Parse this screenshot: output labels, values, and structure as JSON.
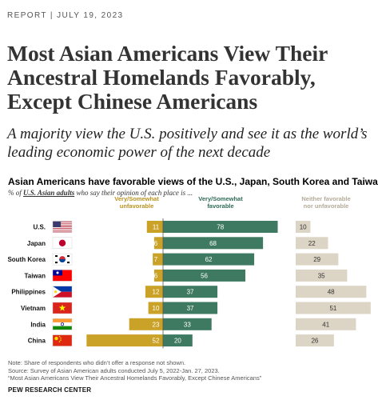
{
  "header": {
    "kicker": "REPORT  |  JULY 19, 2023",
    "headline": "Most Asian Americans View Their Ancestral Homelands Favorably, Except Chinese Americans",
    "subhead": "A majority view the U.S. positively and see it as the world’s leading economic power of the next decade"
  },
  "colors": {
    "unfavorable": "#c9a227",
    "favorable": "#3e7a62",
    "neither": "#dcd4c4",
    "unfav_label": "#b8921f",
    "fav_label": "#2f6b55",
    "neither_label": "#b3aa98"
  },
  "chart_data": {
    "type": "bar",
    "title": "Asian Americans have favorable views of the U.S., Japan, South Korea and Taiwan",
    "subtitle_pre": "% of ",
    "subtitle_underlined": "U.S. Asian adults",
    "subtitle_post": " who say their opinion of each place is ...",
    "categories": [
      "U.S.",
      "Japan",
      "South Korea",
      "Taiwan",
      "Philippines",
      "Vietnam",
      "India",
      "China"
    ],
    "flags": [
      "us-flag",
      "japan-flag",
      "south-korea-flag",
      "taiwan-flag",
      "philippines-flag",
      "vietnam-flag",
      "india-flag",
      "china-flag"
    ],
    "series": [
      {
        "name": "Very/Somewhat unfavorable",
        "label_lines": [
          "Very/Somewhat",
          "unfavorable"
        ],
        "values": [
          11,
          6,
          7,
          6,
          12,
          10,
          23,
          52
        ]
      },
      {
        "name": "Very/Somewhat favorable",
        "label_lines": [
          "Very/Somewhat",
          "favorable"
        ],
        "values": [
          78,
          68,
          62,
          56,
          37,
          37,
          33,
          20
        ]
      },
      {
        "name": "Neither favorable nor unfavorable",
        "label_lines": [
          "Neither favorable",
          "nor unfavorable"
        ],
        "values": [
          10,
          22,
          29,
          35,
          48,
          51,
          41,
          26
        ]
      }
    ]
  },
  "footer": {
    "note": "Note: Share of respondents who didn’t offer a response not shown.",
    "source": "Source: Survey of Asian American adults conducted July 5, 2022-Jan. 27, 2023.",
    "report": "“Most Asian Americans View Their Ancestral Homelands Favorably, Except Chinese Americans”",
    "brand": "PEW RESEARCH CENTER"
  }
}
